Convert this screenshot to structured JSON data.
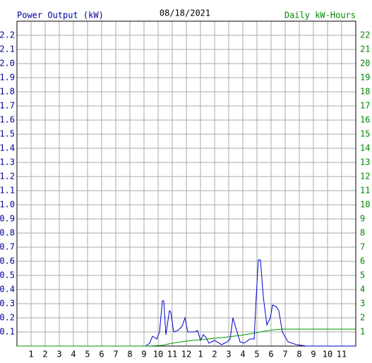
{
  "chart_data": {
    "type": "line",
    "title": "08/18/2021",
    "y_label": "Power Output (kW)",
    "y2_label": "Daily kW-Hours",
    "xlim": [
      0,
      24
    ],
    "xticks": [
      1,
      2,
      3,
      4,
      5,
      6,
      7,
      8,
      9,
      10,
      11,
      12,
      {
        "value": 13,
        "label": "1"
      },
      {
        "value": 14,
        "label": "2"
      },
      {
        "value": 15,
        "label": "3"
      },
      {
        "value": 16,
        "label": "4"
      },
      {
        "value": 17,
        "label": "5"
      },
      {
        "value": 18,
        "label": "6"
      },
      {
        "value": 19,
        "label": "7"
      },
      {
        "value": 20,
        "label": "8"
      },
      {
        "value": 21,
        "label": "9"
      },
      {
        "value": 22,
        "label": "10"
      },
      {
        "value": 23,
        "label": "11"
      }
    ],
    "ylim": [
      0,
      2.3
    ],
    "yticks": [
      0.1,
      0.2,
      0.3,
      0.4,
      0.5,
      0.6,
      0.7,
      0.8,
      0.9,
      {
        "value": 1,
        "label": "1.0"
      },
      1.1,
      1.2,
      1.3,
      1.4,
      1.5,
      1.6,
      1.7,
      1.8,
      1.9,
      {
        "value": 2,
        "label": "2.0"
      },
      2.1,
      2.2
    ],
    "y2lim": [
      0,
      23
    ],
    "y2ticks": [
      1,
      2,
      3,
      4,
      5,
      6,
      7,
      8,
      9,
      10,
      11,
      12,
      13,
      14,
      15,
      16,
      17,
      18,
      19,
      20,
      21,
      22
    ],
    "grid": true,
    "series": [
      {
        "name": "Power Output (kW)",
        "color": "#0000cc",
        "x": [
          0,
          9.1,
          9.4,
          9.6,
          9.9,
          10.1,
          10.3,
          10.4,
          10.55,
          10.8,
          10.9,
          11.1,
          11.4,
          11.7,
          11.9,
          12.1,
          12.3,
          12.6,
          12.8,
          13.0,
          13.2,
          13.4,
          13.6,
          14.0,
          14.5,
          14.9,
          15.1,
          15.3,
          15.5,
          15.8,
          16.1,
          16.5,
          16.8,
          16.95,
          17.1,
          17.25,
          17.45,
          17.7,
          17.95,
          18.1,
          18.35,
          18.55,
          18.8,
          19.2,
          19.8,
          20.5,
          24
        ],
        "values": [
          0,
          0,
          0.02,
          0.07,
          0.05,
          0.1,
          0.32,
          0.32,
          0.08,
          0.25,
          0.24,
          0.1,
          0.11,
          0.14,
          0.2,
          0.1,
          0.1,
          0.1,
          0.11,
          0.04,
          0.08,
          0.06,
          0.02,
          0.04,
          0.01,
          0.03,
          0.05,
          0.2,
          0.13,
          0.03,
          0.02,
          0.05,
          0.05,
          0.35,
          0.61,
          0.61,
          0.35,
          0.15,
          0.2,
          0.29,
          0.28,
          0.25,
          0.1,
          0.03,
          0.01,
          0,
          0
        ]
      },
      {
        "name": "Daily kW-Hours",
        "color": "#009900",
        "axis": "y2",
        "x": [
          0,
          9.3,
          10.3,
          11,
          12,
          13,
          14,
          15,
          16,
          17,
          17.5,
          18.2,
          18.8,
          19.5,
          24
        ],
        "values": [
          0,
          0,
          0.05,
          0.2,
          0.35,
          0.45,
          0.55,
          0.65,
          0.78,
          0.95,
          1.05,
          1.15,
          1.2,
          1.2,
          1.2
        ]
      }
    ]
  }
}
